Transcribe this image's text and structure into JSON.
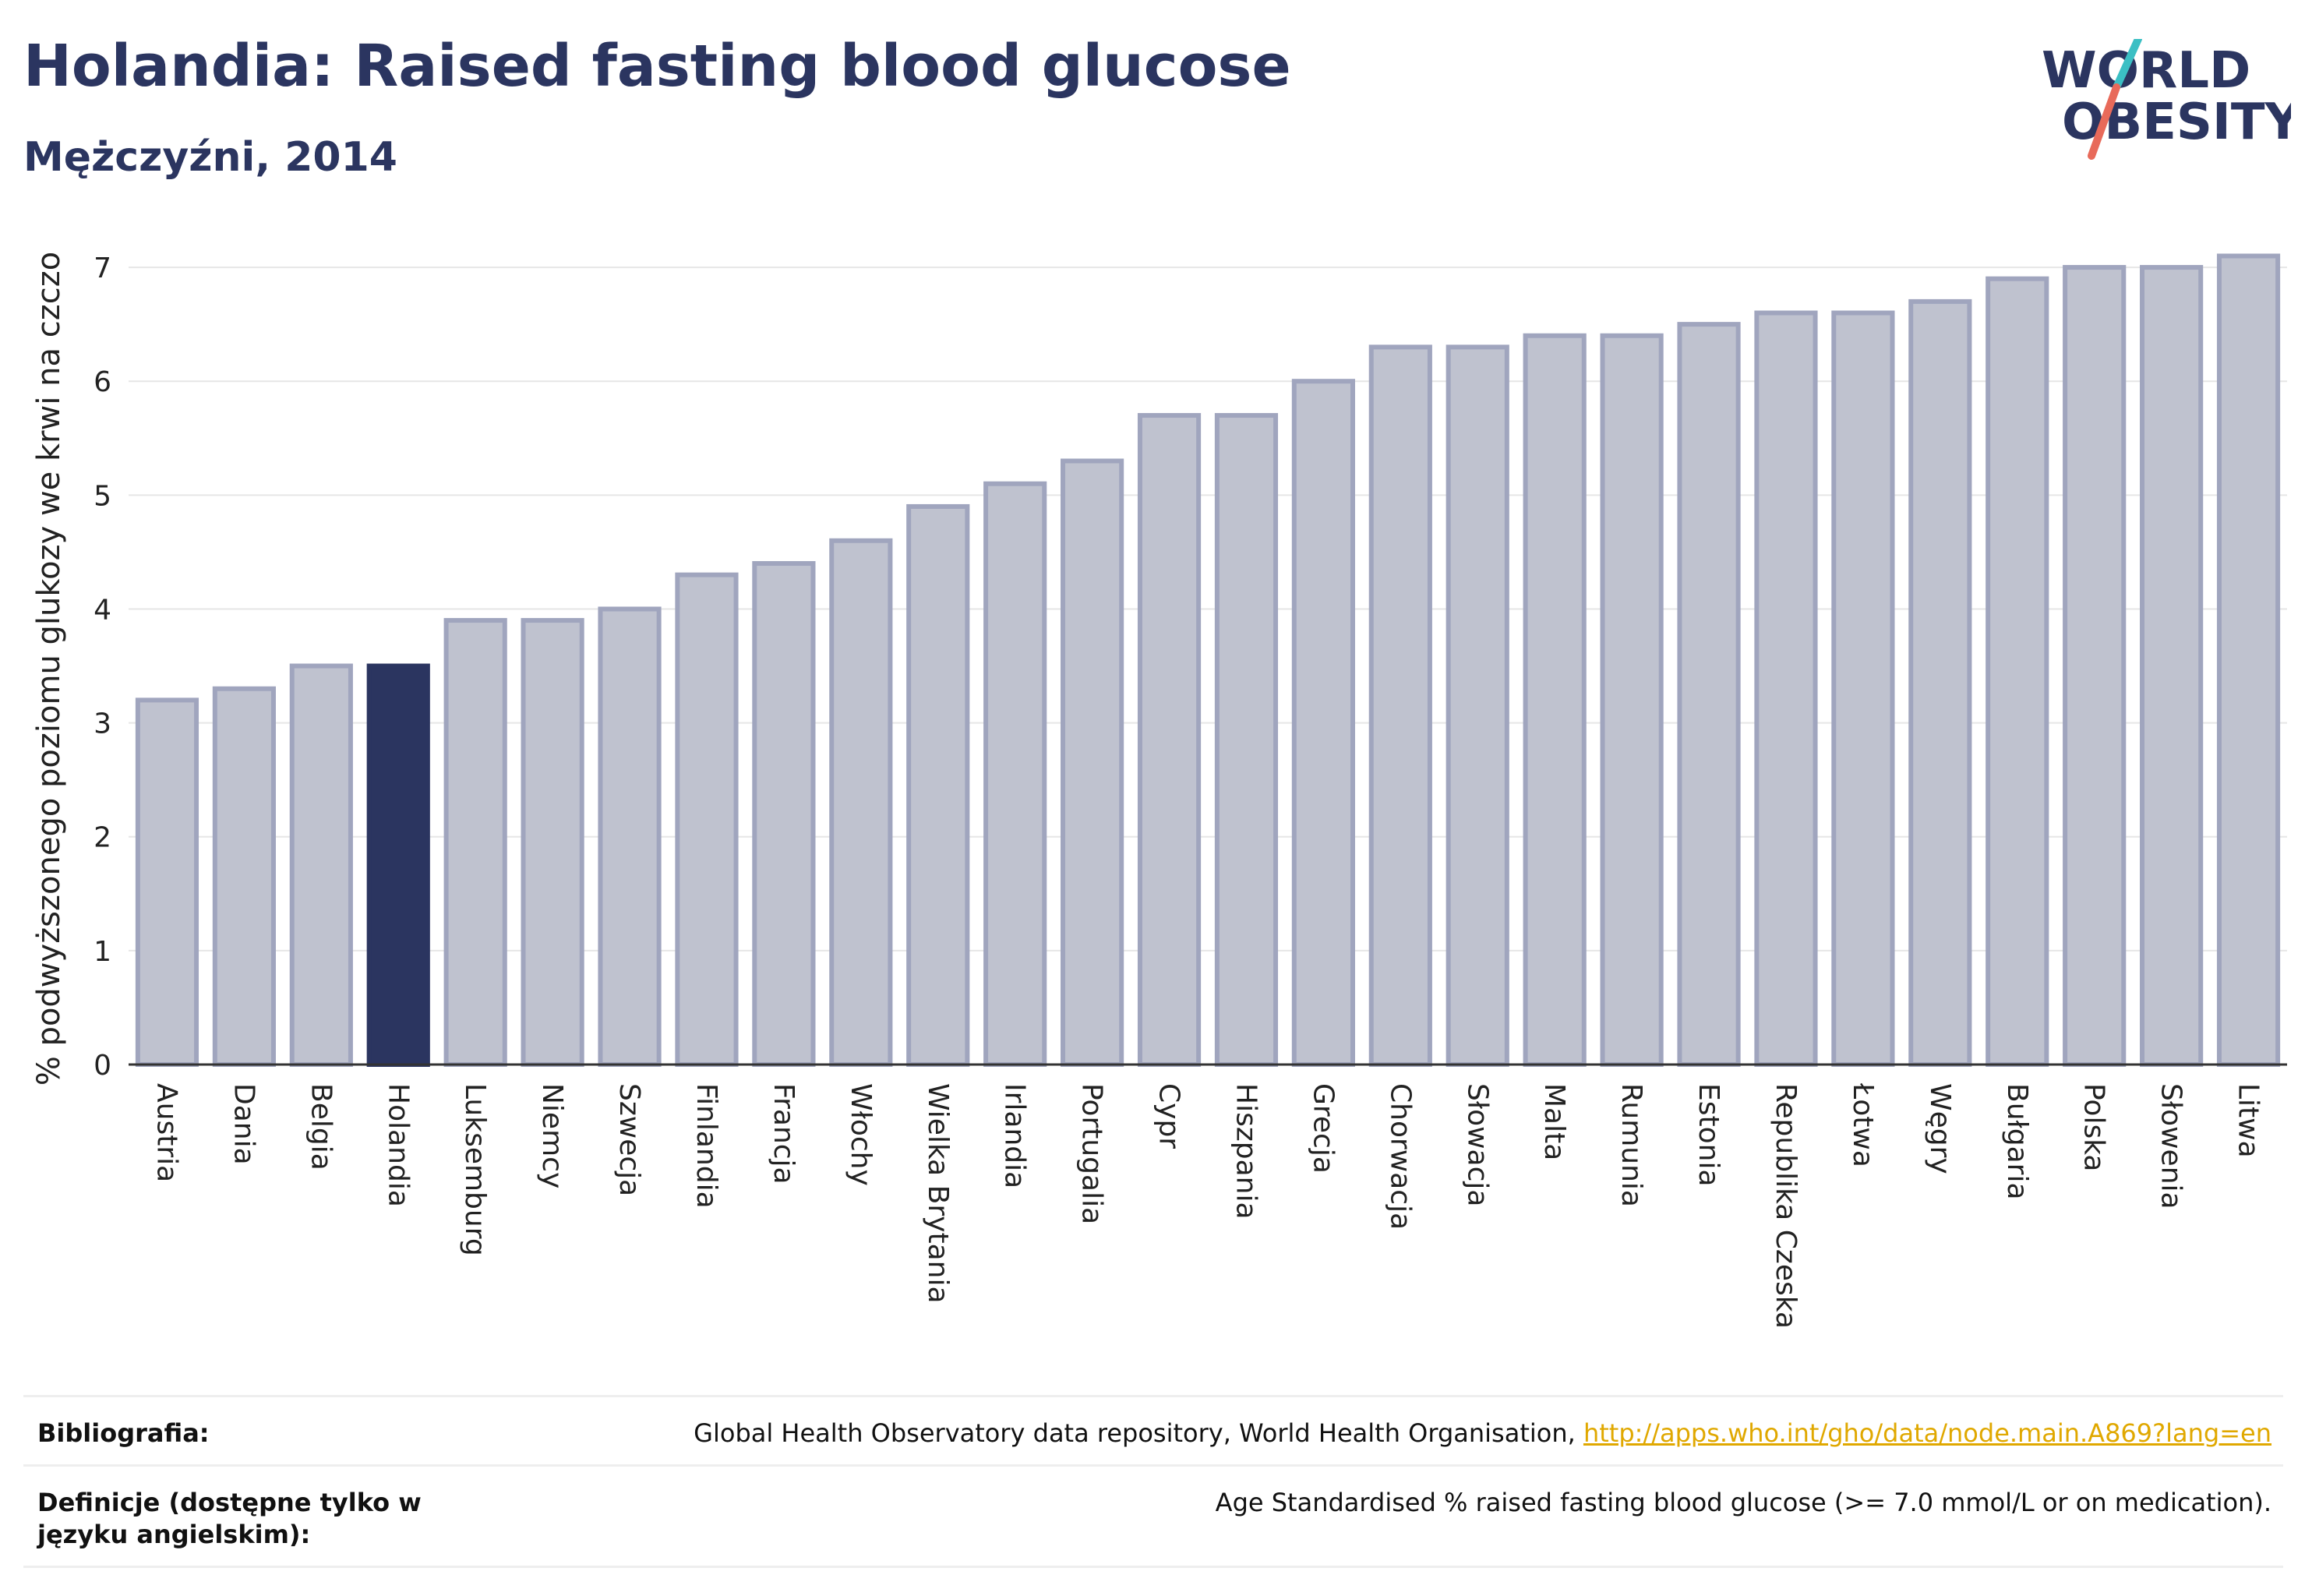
{
  "header": {
    "title": "Holandia: Raised fasting blood glucose",
    "subtitle": "Mężczyźni, 2014"
  },
  "logo": {
    "line1": "WORLD",
    "line2": "OBESITY"
  },
  "colors": {
    "highlight": "#2b3560",
    "bar": "#bfc2cf",
    "bar_border": "#a0a5be",
    "grid": "#e6e6e6"
  },
  "chart_data": {
    "type": "bar",
    "ylabel": "% podwyższonego poziomu glukozy we krwi na czczo",
    "ylim": [
      0,
      7.5
    ],
    "yticks": [
      0,
      1,
      2,
      3,
      4,
      5,
      6,
      7
    ],
    "grid": true,
    "highlight": "Holandia",
    "categories": [
      "Austria",
      "Dania",
      "Belgia",
      "Holandia",
      "Luksemburg",
      "Niemcy",
      "Szwecja",
      "Finlandia",
      "Francja",
      "Włochy",
      "Wielka Brytania",
      "Irlandia",
      "Portugalia",
      "Cypr",
      "Hiszpania",
      "Grecja",
      "Chorwacja",
      "Słowacja",
      "Malta",
      "Rumunia",
      "Estonia",
      "Republika Czeska",
      "Łotwa",
      "Węgry",
      "Bułgaria",
      "Polska",
      "Słowenia",
      "Litwa"
    ],
    "values": [
      3.2,
      3.3,
      3.5,
      3.5,
      3.9,
      3.9,
      4.0,
      4.3,
      4.4,
      4.6,
      4.9,
      5.1,
      5.3,
      5.7,
      5.7,
      6.0,
      6.3,
      6.3,
      6.4,
      6.4,
      6.5,
      6.6,
      6.6,
      6.7,
      6.9,
      7.0,
      7.0,
      7.1
    ]
  },
  "footer": {
    "bibliography_label": "Bibliografia:",
    "bibliography_text": "Global Health Observatory data repository, World Health Organisation, ",
    "bibliography_link": "http://apps.who.int/gho/data/node.main.A869?lang=en",
    "definitions_label": "Definicje (dostępne tylko w języku angielskim):",
    "definitions_text": "Age Standardised % raised fasting blood glucose (>= 7.0 mmol/L or on medication)."
  }
}
